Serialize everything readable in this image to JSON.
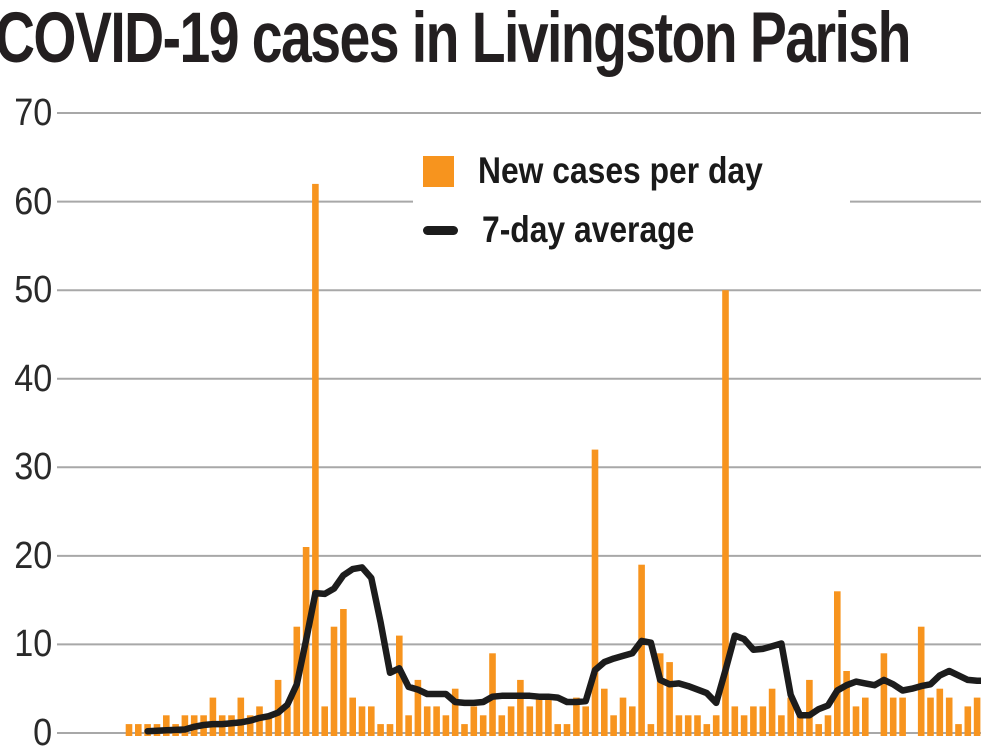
{
  "header": {
    "title": "COVID-19 cases in Livingston Parish"
  },
  "legend": {
    "items": [
      {
        "label": "New cases per day",
        "swatch": "square",
        "color": "#F7941E"
      },
      {
        "label": "7-day average",
        "swatch": "dash",
        "color": "#1C1C1C"
      }
    ]
  },
  "axis": {
    "yticks": [
      70,
      60,
      50,
      40,
      30,
      20,
      10,
      0
    ]
  },
  "style": {
    "grid_color": "#A8A8A8",
    "bar_color": "#F7941E",
    "line_color": "#1C1C1C",
    "text_color": "#231F20",
    "background": "#FFFFFF"
  },
  "chart_data": {
    "type": "bar",
    "title": "COVID-19 cases in Livingston Parish",
    "xlabel": "",
    "ylabel": "",
    "ylim": [
      0,
      70
    ],
    "yticks": [
      0,
      10,
      20,
      30,
      40,
      50,
      60,
      70
    ],
    "grid": true,
    "legend_position": "top-center",
    "n_points": 92,
    "x_note": "daily values, left to right; x-axis date labels are cropped out of the visible image",
    "series": [
      {
        "name": "New cases per day",
        "type": "bar",
        "color": "#F7941E",
        "values": [
          1,
          1,
          1,
          1,
          2,
          1,
          2,
          2,
          2,
          4,
          2,
          2,
          4,
          2,
          3,
          2,
          6,
          3,
          12,
          21,
          62,
          3,
          12,
          14,
          4,
          3,
          3,
          1,
          1,
          11,
          2,
          6,
          3,
          3,
          2,
          5,
          1,
          3,
          2,
          9,
          2,
          3,
          6,
          3,
          4,
          4,
          1,
          1,
          4,
          3,
          32,
          5,
          2,
          4,
          3,
          19,
          1,
          9,
          8,
          2,
          2,
          2,
          1,
          2,
          50,
          3,
          2,
          3,
          3,
          5,
          2,
          4,
          2,
          6,
          1,
          2,
          16,
          7,
          3,
          4,
          0,
          9,
          4,
          4,
          0,
          12,
          4,
          5,
          4,
          1,
          3,
          4
        ]
      },
      {
        "name": "7-day average",
        "type": "line",
        "color": "#1C1C1C",
        "values": [
          null,
          null,
          0.2,
          0.25,
          0.3,
          0.35,
          0.4,
          0.7,
          0.9,
          1.0,
          1.0,
          1.1,
          1.2,
          1.4,
          1.7,
          1.9,
          2.3,
          3.2,
          5.5,
          10.5,
          15.8,
          15.7,
          16.3,
          17.8,
          18.5,
          18.7,
          17.5,
          12.5,
          6.8,
          7.3,
          5.2,
          4.9,
          4.4,
          4.4,
          4.4,
          3.5,
          3.4,
          3.4,
          3.5,
          4.1,
          4.2,
          4.2,
          4.2,
          4.2,
          4.1,
          4.1,
          4.0,
          3.5,
          3.5,
          3.6,
          7.1,
          8.0,
          8.4,
          8.7,
          9.0,
          10.4,
          10.2,
          6.0,
          5.5,
          5.6,
          5.3,
          4.9,
          4.5,
          3.4,
          7.1,
          11.0,
          10.6,
          9.4,
          9.5,
          9.8,
          10.1,
          4.3,
          2.0,
          2.0,
          2.7,
          3.1,
          4.8,
          5.4,
          5.8,
          5.6,
          5.4,
          6.0,
          5.5,
          4.8,
          5.0,
          5.3,
          5.5,
          6.5,
          7.0,
          6.5,
          6.0,
          5.9
        ]
      }
    ]
  }
}
